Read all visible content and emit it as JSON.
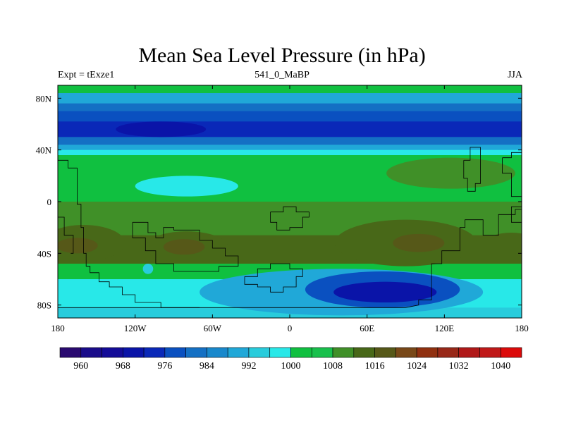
{
  "chart_data": {
    "type": "heatmap",
    "title": "Mean Sea Level Pressure (in hPa)",
    "subtitle_left": "Expt = tExze1",
    "subtitle_center": "541_0_MaBP",
    "subtitle_right": "JJA",
    "variable_units": "hPa",
    "lon_range": [
      -180,
      180
    ],
    "lat_range": [
      -90,
      90
    ],
    "x_ticks": [
      {
        "value": -180,
        "label": "180"
      },
      {
        "value": -120,
        "label": "120W"
      },
      {
        "value": -60,
        "label": "60W"
      },
      {
        "value": 0,
        "label": "0"
      },
      {
        "value": 60,
        "label": "60E"
      },
      {
        "value": 120,
        "label": "120E"
      },
      {
        "value": 180,
        "label": "180"
      }
    ],
    "y_ticks": [
      {
        "value": 80,
        "label": "80N"
      },
      {
        "value": 40,
        "label": "40N"
      },
      {
        "value": 0,
        "label": "0"
      },
      {
        "value": -40,
        "label": "40S"
      },
      {
        "value": -80,
        "label": "80S"
      }
    ],
    "colorbar": {
      "colors": [
        "#2a0a70",
        "#1a0c8a",
        "#140c98",
        "#0a14a8",
        "#0a28b8",
        "#0a50c0",
        "#1470c4",
        "#1888cc",
        "#20a8d8",
        "#28ccdc",
        "#28e8e8",
        "#10c040",
        "#18c04c",
        "#409028",
        "#486818",
        "#565818",
        "#784818",
        "#903010",
        "#982818",
        "#b01818",
        "#c01818",
        "#dc0a0a"
      ],
      "levels": [
        960,
        968,
        976,
        984,
        992,
        1000,
        1008,
        1016,
        1024,
        1032,
        1040
      ],
      "labels": [
        "960",
        "968",
        "976",
        "984",
        "992",
        "1000",
        "1008",
        "1016",
        "1024",
        "1032",
        "1040"
      ]
    },
    "bands": [
      {
        "lat_top": 90,
        "lat_bot": 84,
        "value": 1000
      },
      {
        "lat_top": 84,
        "lat_bot": 76,
        "value": 988
      },
      {
        "lat_top": 76,
        "lat_bot": 70,
        "value": 980
      },
      {
        "lat_top": 70,
        "lat_bot": 62,
        "value": 976
      },
      {
        "lat_top": 62,
        "lat_bot": 50,
        "value": 972
      },
      {
        "lat_top": 50,
        "lat_bot": 44,
        "value": 980
      },
      {
        "lat_top": 44,
        "lat_bot": 40,
        "value": 988
      },
      {
        "lat_top": 40,
        "lat_bot": 36,
        "value": 996
      },
      {
        "lat_top": 36,
        "lat_bot": 0,
        "value": 1002
      },
      {
        "lat_top": 0,
        "lat_bot": -26,
        "value": 1010
      },
      {
        "lat_top": -26,
        "lat_bot": -48,
        "value": 1012
      },
      {
        "lat_top": -48,
        "lat_bot": -60,
        "value": 1002
      },
      {
        "lat_top": -60,
        "lat_bot": -82,
        "value": 996
      },
      {
        "lat_top": -82,
        "lat_bot": -90,
        "value": 992
      }
    ],
    "features": [
      {
        "name": "low-north-pacific",
        "shape": "ellipse",
        "lon": -95,
        "lat": 55,
        "rx_deg": 20,
        "ry_deg": 3,
        "value": 964
      },
      {
        "name": "low-north-mid-pacific",
        "shape": "ellipse",
        "lon": -100,
        "lat": 56,
        "rx_deg": 35,
        "ry_deg": 6,
        "value": 968
      },
      {
        "name": "weak-low-east-pacific",
        "shape": "ellipse",
        "lon": -80,
        "lat": 12,
        "rx_deg": 40,
        "ry_deg": 8,
        "value": 996
      },
      {
        "name": "high-north-east",
        "shape": "ellipse",
        "lon": 125,
        "lat": 22,
        "rx_deg": 50,
        "ry_deg": 12,
        "value": 1008
      },
      {
        "name": "high-southwest-pacific",
        "shape": "ellipse",
        "lon": -160,
        "lat": -32,
        "rx_deg": 32,
        "ry_deg": 14,
        "value": 1012
      },
      {
        "name": "high-southwest-core",
        "shape": "ellipse",
        "lon": -165,
        "lat": -34,
        "rx_deg": 16,
        "ry_deg": 6,
        "value": 1016
      },
      {
        "name": "high-south-pacific",
        "shape": "ellipse",
        "lon": -80,
        "lat": -35,
        "rx_deg": 32,
        "ry_deg": 12,
        "value": 1012
      },
      {
        "name": "high-south-pacific-core",
        "shape": "ellipse",
        "lon": -82,
        "lat": -35,
        "rx_deg": 16,
        "ry_deg": 6,
        "value": 1016
      },
      {
        "name": "high-south-indian",
        "shape": "ellipse",
        "lon": 90,
        "lat": -32,
        "rx_deg": 55,
        "ry_deg": 18,
        "value": 1012
      },
      {
        "name": "high-south-indian-core",
        "shape": "ellipse",
        "lon": 100,
        "lat": -32,
        "rx_deg": 20,
        "ry_deg": 7,
        "value": 1016
      },
      {
        "name": "high-southeast-pacific",
        "shape": "ellipse",
        "lon": 172,
        "lat": -32,
        "rx_deg": 20,
        "ry_deg": 8,
        "value": 1012
      },
      {
        "name": "low-southern-band",
        "shape": "ellipse",
        "lon": 40,
        "lat": -70,
        "rx_deg": 110,
        "ry_deg": 18,
        "value": 988
      },
      {
        "name": "low-southern-ocean",
        "shape": "ellipse",
        "lon": 72,
        "lat": -68,
        "rx_deg": 60,
        "ry_deg": 14,
        "value": 976
      },
      {
        "name": "low-southern-core",
        "shape": "ellipse",
        "lon": 74,
        "lat": -70,
        "rx_deg": 40,
        "ry_deg": 8,
        "value": 968
      },
      {
        "name": "low-south-atlantic-blob",
        "shape": "ellipse",
        "lon": -110,
        "lat": -52,
        "rx_deg": 4,
        "ry_deg": 4,
        "value": 992
      }
    ],
    "coastlines": [
      [
        [
          -180,
          32
        ],
        [
          -172,
          32
        ],
        [
          -172,
          26
        ],
        [
          -165,
          26
        ],
        [
          -165,
          -2
        ],
        [
          -162,
          -2
        ],
        [
          -162,
          -20
        ],
        [
          -160,
          -20
        ],
        [
          -160,
          -40
        ],
        [
          -158,
          -40
        ],
        [
          -158,
          -50
        ],
        [
          -155,
          -50
        ],
        [
          -155,
          -55
        ],
        [
          -148,
          -55
        ],
        [
          -148,
          -62
        ],
        [
          -140,
          -62
        ],
        [
          -140,
          -66
        ],
        [
          -130,
          -66
        ],
        [
          -130,
          -72
        ],
        [
          -120,
          -72
        ],
        [
          -120,
          -78
        ],
        [
          -100,
          -78
        ],
        [
          -100,
          -82
        ],
        [
          -70,
          -82
        ]
      ],
      [
        [
          -180,
          -12
        ],
        [
          -175,
          -12
        ],
        [
          -175,
          -26
        ],
        [
          -168,
          -26
        ],
        [
          -168,
          -40
        ],
        [
          -170,
          -40
        ]
      ],
      [
        [
          -122,
          -16
        ],
        [
          -110,
          -16
        ],
        [
          -110,
          -24
        ],
        [
          -104,
          -24
        ],
        [
          -104,
          -28
        ],
        [
          -98,
          -28
        ],
        [
          -98,
          -20
        ],
        [
          -90,
          -20
        ],
        [
          -90,
          -22
        ],
        [
          -70,
          -22
        ],
        [
          -70,
          -30
        ],
        [
          -60,
          -30
        ],
        [
          -60,
          -36
        ],
        [
          -50,
          -36
        ],
        [
          -50,
          -42
        ],
        [
          -40,
          -42
        ],
        [
          -40,
          -50
        ],
        [
          -55,
          -50
        ],
        [
          -55,
          -54
        ],
        [
          -90,
          -54
        ],
        [
          -90,
          -48
        ],
        [
          -104,
          -48
        ],
        [
          -104,
          -38
        ],
        [
          -112,
          -38
        ],
        [
          -112,
          -28
        ],
        [
          -122,
          -28
        ],
        [
          -122,
          -16
        ]
      ],
      [
        [
          -15,
          -8
        ],
        [
          -5,
          -8
        ],
        [
          -5,
          -4
        ],
        [
          0,
          -4
        ],
        [
          5,
          -4
        ],
        [
          5,
          -8
        ],
        [
          15,
          -8
        ],
        [
          15,
          -12
        ],
        [
          10,
          -12
        ],
        [
          10,
          -20
        ],
        [
          0,
          -20
        ],
        [
          0,
          -22
        ],
        [
          -10,
          -22
        ],
        [
          -10,
          -16
        ],
        [
          -15,
          -16
        ],
        [
          -15,
          -8
        ]
      ],
      [
        [
          -35,
          -58
        ],
        [
          -25,
          -58
        ],
        [
          -25,
          -52
        ],
        [
          -15,
          -52
        ],
        [
          -15,
          -48
        ],
        [
          0,
          -48
        ],
        [
          0,
          -52
        ],
        [
          10,
          -52
        ],
        [
          10,
          -58
        ],
        [
          5,
          -58
        ],
        [
          5,
          -66
        ],
        [
          -5,
          -66
        ],
        [
          -5,
          -70
        ],
        [
          -15,
          -70
        ],
        [
          -15,
          -66
        ],
        [
          -25,
          -66
        ],
        [
          -25,
          -64
        ],
        [
          -35,
          -64
        ],
        [
          -35,
          -58
        ]
      ],
      [
        [
          -180,
          -82
        ],
        [
          -120,
          -82
        ],
        [
          -60,
          -82
        ],
        [
          0,
          -82
        ],
        [
          60,
          -82
        ],
        [
          90,
          -82
        ],
        [
          100,
          -80
        ],
        [
          100,
          -76
        ],
        [
          110,
          -76
        ],
        [
          110,
          -48
        ],
        [
          118,
          -48
        ],
        [
          118,
          -38
        ],
        [
          132,
          -38
        ],
        [
          132,
          -20
        ],
        [
          136,
          -20
        ],
        [
          136,
          -14
        ],
        [
          150,
          -14
        ],
        [
          150,
          -26
        ],
        [
          162,
          -26
        ],
        [
          162,
          -10
        ],
        [
          175,
          -10
        ],
        [
          175,
          -6
        ],
        [
          180,
          -6
        ]
      ],
      [
        [
          135,
          32
        ],
        [
          140,
          32
        ],
        [
          140,
          42
        ],
        [
          148,
          42
        ],
        [
          148,
          14
        ],
        [
          144,
          14
        ],
        [
          144,
          8
        ],
        [
          138,
          8
        ],
        [
          138,
          18
        ],
        [
          135,
          18
        ],
        [
          135,
          32
        ]
      ],
      [
        [
          165,
          34
        ],
        [
          172,
          34
        ],
        [
          172,
          38
        ],
        [
          180,
          38
        ]
      ],
      [
        [
          165,
          34
        ],
        [
          165,
          22
        ],
        [
          172,
          22
        ],
        [
          172,
          4
        ],
        [
          180,
          4
        ]
      ],
      [
        [
          180,
          -4
        ],
        [
          172,
          -4
        ],
        [
          172,
          -16
        ],
        [
          180,
          -16
        ]
      ]
    ]
  }
}
